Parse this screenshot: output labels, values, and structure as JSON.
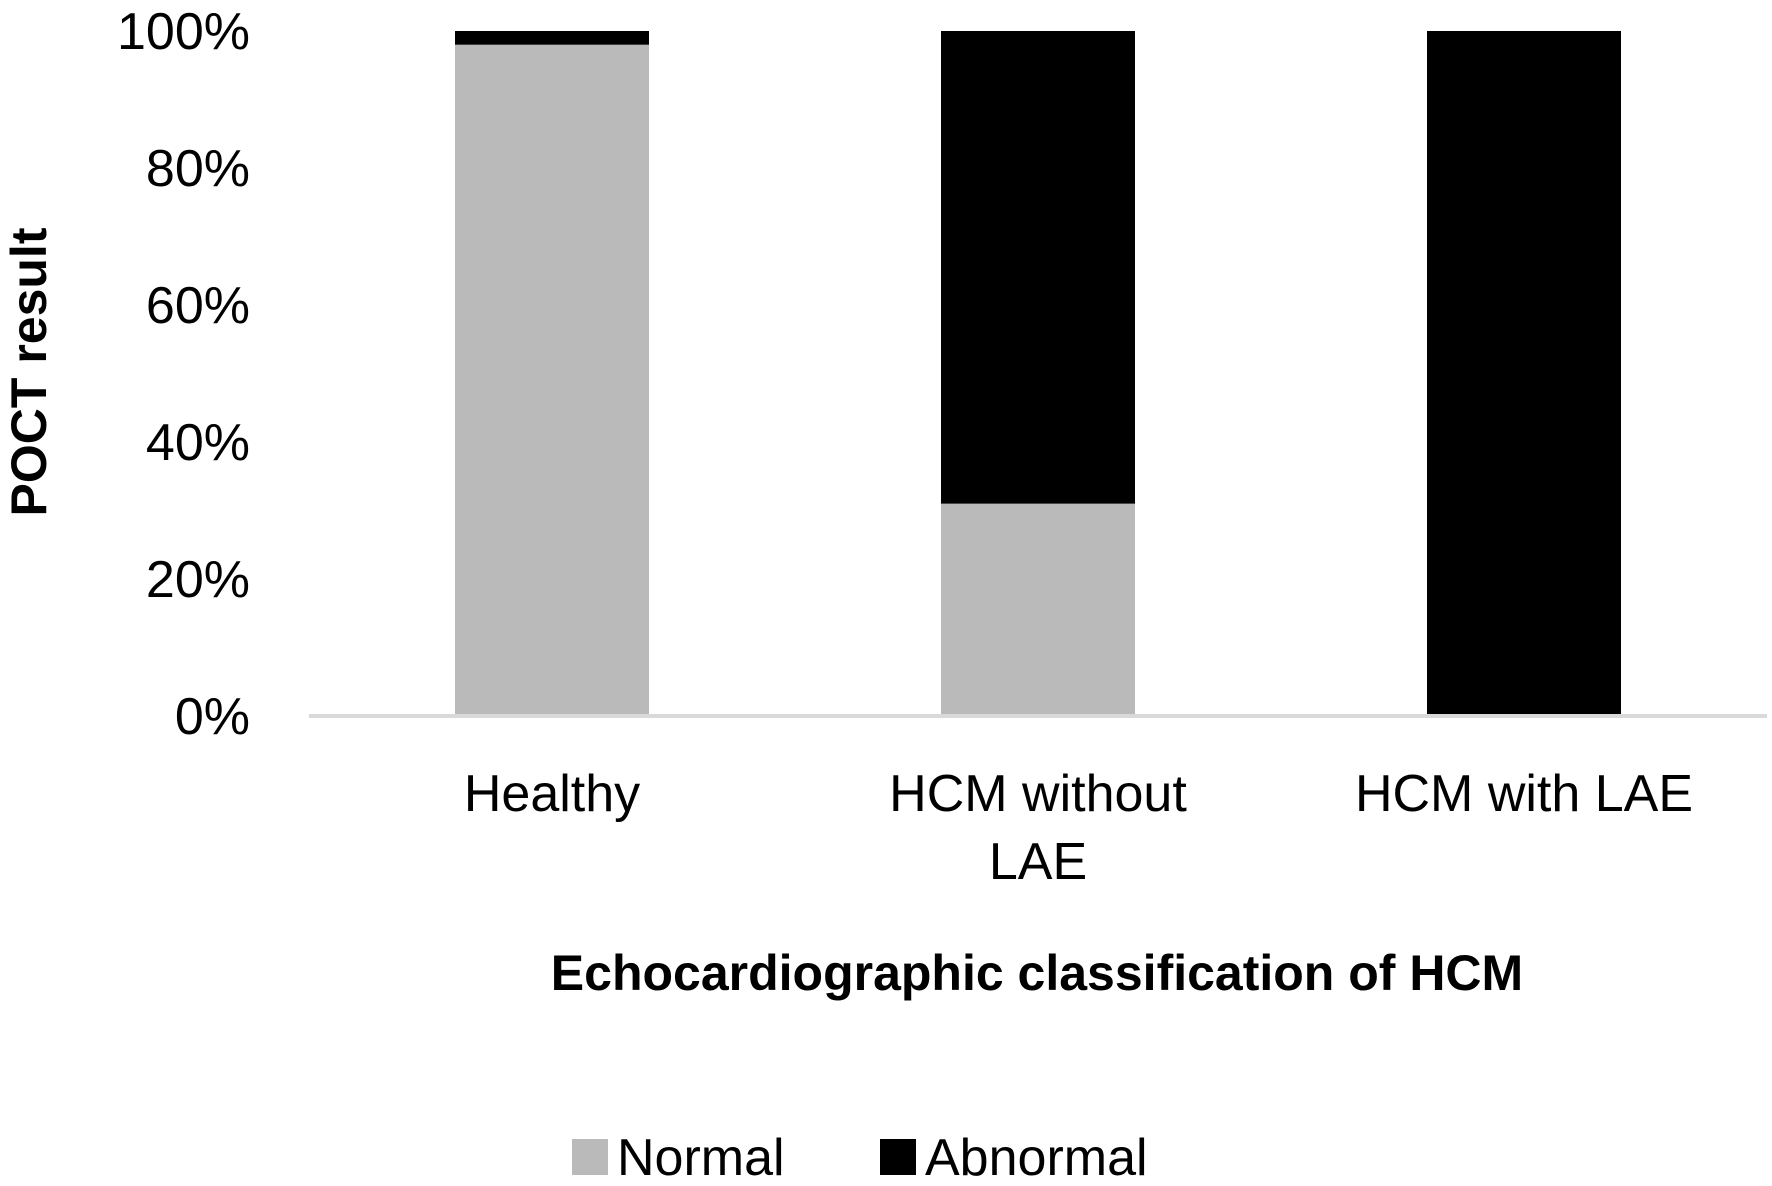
{
  "chart_data": {
    "type": "bar",
    "stacked": true,
    "percent_stacked": true,
    "categories": [
      [
        "Healthy"
      ],
      [
        "HCM without",
        "LAE"
      ],
      [
        "HCM with LAE"
      ]
    ],
    "series": [
      {
        "name": "Normal",
        "values": [
          98,
          31,
          0
        ],
        "color": "#bababa"
      },
      {
        "name": "Abnormal",
        "values": [
          2,
          69,
          100
        ],
        "color": "#000000"
      }
    ],
    "title": "",
    "xlabel": "Echocardiographic classification of HCM",
    "ylabel": "POCT result",
    "ylim": [
      0,
      100
    ],
    "yticks": [
      "0%",
      "20%",
      "40%",
      "60%",
      "80%",
      "100%"
    ],
    "ytick_values": [
      0,
      20,
      40,
      60,
      80,
      100
    ],
    "grid": false,
    "legend_position": "bottom",
    "axis_color": "#d9d9d9"
  }
}
